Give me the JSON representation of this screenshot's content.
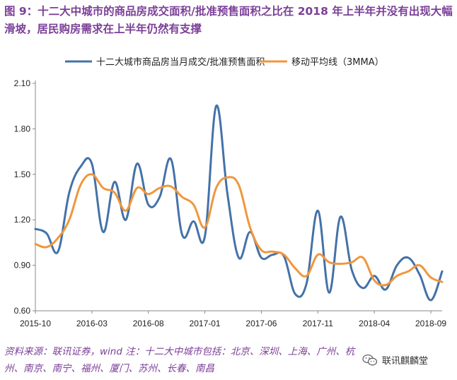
{
  "figure": {
    "title": "图 9：十二大中城市的商品房成交面积/批准预售面积之比在 2018 年上半年并没有出现大幅滑坡，居民购房需求在上半年仍然有支撑",
    "source": "资料来源：联讯证券，wind 注：十二大中城市包括：北京、深圳、上海、广州、杭州、南京、南宁、福州、厦门、苏州、长春、南昌",
    "watermark": "联讯麒麟堂"
  },
  "chart_data": {
    "type": "line",
    "title": "",
    "xlabel": "",
    "ylabel": "",
    "x_start": "2015-10",
    "x_end": "2018-10",
    "x_ticks": [
      "2015-10",
      "2016-03",
      "2016-08",
      "2017-01",
      "2017-06",
      "2017-11",
      "2018-04",
      "2018-09"
    ],
    "y_ticks": [
      "0.60",
      "0.90",
      "1.20",
      "1.50",
      "1.80",
      "2.10"
    ],
    "ylim": [
      0.6,
      2.1
    ],
    "grid": false,
    "legend_position": "top",
    "series": [
      {
        "name": "十二大城市商品房当月成交/批准预售面积",
        "color": "#4472a8",
        "x": [
          "2015-10",
          "2015-11",
          "2015-12",
          "2016-01",
          "2016-02",
          "2016-03",
          "2016-04",
          "2016-05",
          "2016-06",
          "2016-07",
          "2016-08",
          "2016-09",
          "2016-10",
          "2016-11",
          "2016-12",
          "2017-01",
          "2017-02",
          "2017-03",
          "2017-04",
          "2017-05",
          "2017-06",
          "2017-07",
          "2017-08",
          "2017-09",
          "2017-10",
          "2017-11",
          "2017-12",
          "2018-01",
          "2018-02",
          "2018-03",
          "2018-04",
          "2018-05",
          "2018-06",
          "2018-07",
          "2018-08",
          "2018-09",
          "2018-10"
        ],
        "values": [
          1.14,
          1.11,
          0.99,
          1.38,
          1.55,
          1.57,
          1.12,
          1.45,
          1.2,
          1.57,
          1.3,
          1.35,
          1.6,
          1.1,
          1.19,
          1.09,
          1.95,
          1.37,
          0.95,
          1.12,
          0.95,
          0.97,
          0.96,
          0.71,
          0.78,
          1.26,
          0.72,
          1.22,
          0.87,
          0.75,
          0.83,
          0.74,
          0.9,
          0.95,
          0.84,
          0.67,
          0.86
        ]
      },
      {
        "name": "移动平均线（3MMA）",
        "color": "#f0963e",
        "x": [
          "2015-10",
          "2015-11",
          "2015-12",
          "2016-01",
          "2016-02",
          "2016-03",
          "2016-04",
          "2016-05",
          "2016-06",
          "2016-07",
          "2016-08",
          "2016-09",
          "2016-10",
          "2016-11",
          "2016-12",
          "2017-01",
          "2017-02",
          "2017-03",
          "2017-04",
          "2017-05",
          "2017-06",
          "2017-07",
          "2017-08",
          "2017-09",
          "2017-10",
          "2017-11",
          "2017-12",
          "2018-01",
          "2018-02",
          "2018-03",
          "2018-04",
          "2018-05",
          "2018-06",
          "2018-07",
          "2018-08",
          "2018-09",
          "2018-10"
        ],
        "values": [
          1.04,
          1.02,
          1.08,
          1.2,
          1.43,
          1.5,
          1.41,
          1.38,
          1.26,
          1.41,
          1.37,
          1.41,
          1.42,
          1.35,
          1.3,
          1.15,
          1.41,
          1.48,
          1.43,
          1.15,
          1.0,
          0.99,
          0.97,
          0.88,
          0.83,
          0.97,
          0.92,
          0.91,
          0.92,
          0.95,
          0.8,
          0.77,
          0.83,
          0.86,
          0.9,
          0.82,
          0.79
        ]
      }
    ]
  }
}
